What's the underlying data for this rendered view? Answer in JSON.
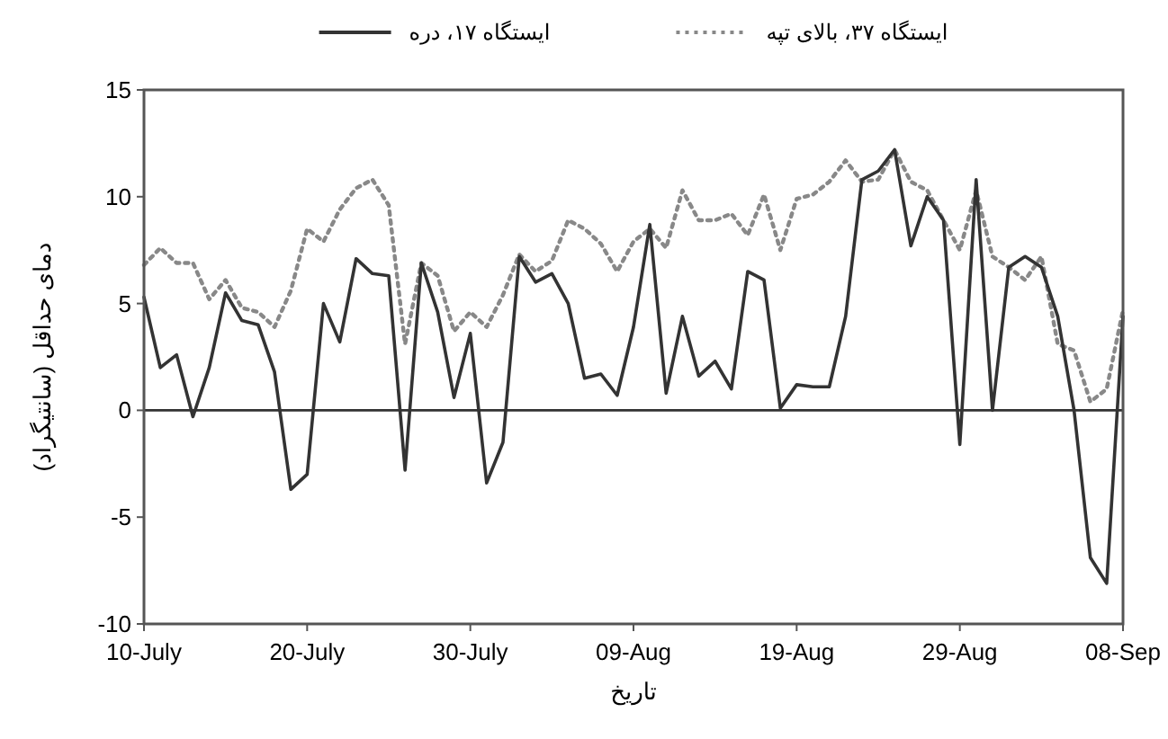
{
  "chart_data": {
    "type": "line",
    "xlabel": "تاریخ",
    "ylabel": "دمای حداقل (سانتیگراد)",
    "x": [
      "--07-10",
      "--07-11",
      "--07-12",
      "--07-13",
      "--07-14",
      "--07-15",
      "--07-16",
      "--07-17",
      "--07-18",
      "--07-19",
      "--07-20",
      "--07-21",
      "--07-22",
      "--07-23",
      "--07-24",
      "--07-25",
      "--07-26",
      "--07-27",
      "--07-28",
      "--07-29",
      "--07-30",
      "--07-31",
      "--08-01",
      "--08-02",
      "--08-03",
      "--08-04",
      "--08-05",
      "--08-06",
      "--08-07",
      "--08-08",
      "--08-09",
      "--08-10",
      "--08-11",
      "--08-12",
      "--08-13",
      "--08-14",
      "--08-15",
      "--08-16",
      "--08-17",
      "--08-18",
      "--08-19",
      "--08-20",
      "--08-21",
      "--08-22",
      "--08-23",
      "--08-24",
      "--08-25",
      "--08-26",
      "--08-27",
      "--08-28",
      "--08-29",
      "--08-30",
      "--08-31",
      "--09-01",
      "--09-02",
      "--09-03",
      "--09-04",
      "--09-05",
      "--09-06",
      "--09-07",
      "--09-08"
    ],
    "series": [
      {
        "name": "ایستگاه ۳۷، بالای تپه",
        "color": "#888888",
        "line_style": "dotted",
        "values": [
          6.8,
          7.6,
          6.9,
          6.9,
          5.2,
          6.1,
          4.8,
          4.6,
          3.9,
          5.6,
          8.5,
          7.9,
          9.4,
          10.4,
          10.8,
          9.6,
          3.1,
          6.9,
          6.3,
          3.7,
          4.6,
          3.9,
          5.4,
          7.3,
          6.5,
          7.0,
          8.9,
          8.5,
          7.8,
          6.5,
          7.9,
          8.5,
          7.6,
          10.3,
          8.9,
          8.9,
          9.2,
          8.2,
          10.1,
          7.5,
          9.9,
          10.1,
          10.7,
          11.7,
          10.7,
          10.8,
          12.2,
          10.7,
          10.3,
          8.9,
          7.5,
          10.3,
          7.2,
          6.7,
          6.1,
          7.2,
          3.1,
          2.8,
          0.4,
          1.0,
          4.7
        ]
      },
      {
        "name": "ایستگاه ۱۷، دره",
        "color": "#333333",
        "line_style": "solid",
        "values": [
          5.3,
          2.0,
          2.6,
          -0.3,
          2.0,
          5.5,
          4.2,
          4.0,
          1.8,
          -3.7,
          -3.0,
          5.0,
          3.2,
          7.1,
          6.4,
          6.3,
          -2.8,
          6.9,
          4.6,
          0.6,
          3.6,
          -3.4,
          -1.5,
          7.2,
          6.0,
          6.4,
          5.0,
          1.5,
          1.7,
          0.7,
          3.9,
          8.7,
          0.8,
          4.4,
          1.6,
          2.3,
          1.0,
          6.5,
          6.1,
          0.1,
          1.2,
          1.1,
          1.1,
          4.4,
          10.8,
          11.2,
          12.2,
          7.7,
          10.0,
          8.9,
          -1.6,
          10.8,
          0.0,
          6.7,
          7.2,
          6.7,
          4.4,
          0.0,
          -6.9,
          -8.1,
          4.4
        ]
      }
    ],
    "xlim": [
      "--07-10",
      "--09-08"
    ],
    "xticks": [
      {
        "value": "--07-10",
        "label": "10-July"
      },
      {
        "value": "--07-20",
        "label": "20-July"
      },
      {
        "value": "--07-30",
        "label": "30-July"
      },
      {
        "value": "--08-09",
        "label": "09-Aug"
      },
      {
        "value": "--08-19",
        "label": "19-Aug"
      },
      {
        "value": "--08-29",
        "label": "29-Aug"
      },
      {
        "value": "--09-08",
        "label": "08-Sep"
      }
    ],
    "ylim": [
      -10,
      15
    ],
    "yticks": [
      -10,
      -5,
      0,
      5,
      10,
      15
    ],
    "ref_lines": [
      {
        "axis": "y",
        "value": 0,
        "color": "#333333"
      }
    ],
    "grid": false,
    "legend": "top",
    "marker": "none"
  }
}
